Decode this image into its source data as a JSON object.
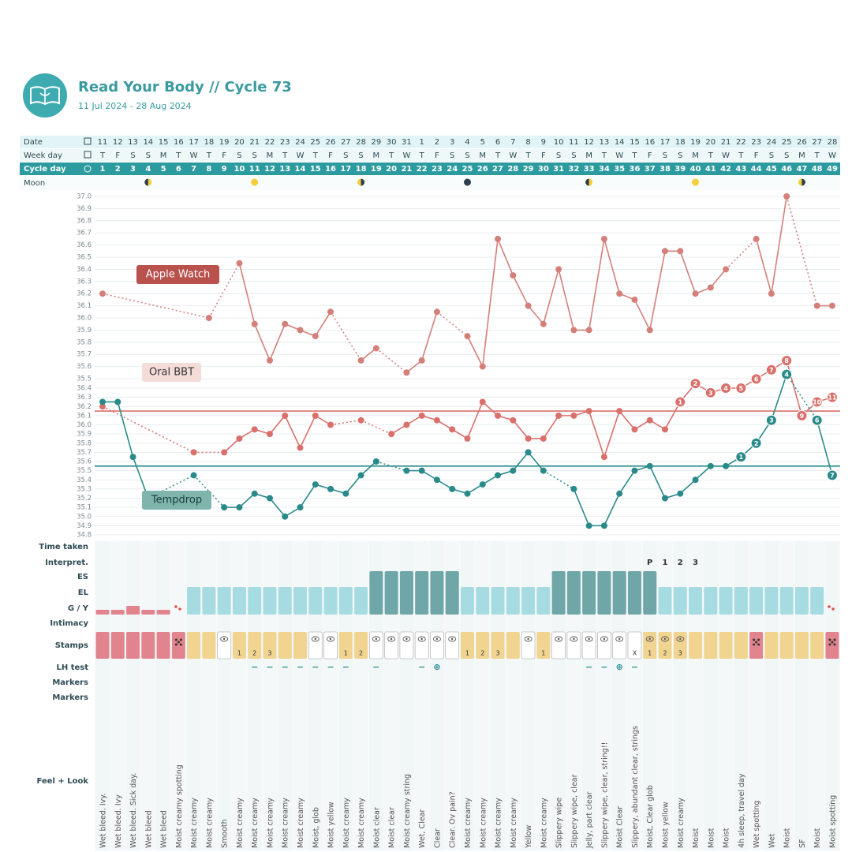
{
  "header": {
    "title": "Read Your Body // Cycle 73",
    "subtitle": "11 Jul 2024 - 28 Aug 2024"
  },
  "top_labels": [
    "Date",
    "Week day",
    "Cycle day",
    "Moon"
  ],
  "row_labels": [
    "Time taken",
    "Interpret.",
    "ES",
    "EL",
    "G / Y",
    "Intimacy",
    "Stamps",
    "LH test",
    "Markers",
    "Markers",
    "Feel + Look"
  ],
  "days": {
    "dates": [
      11,
      12,
      13,
      14,
      15,
      16,
      17,
      18,
      19,
      20,
      21,
      22,
      23,
      24,
      25,
      26,
      27,
      28,
      29,
      30,
      31,
      1,
      2,
      3,
      4,
      5,
      6,
      7,
      8,
      9,
      10,
      11,
      12,
      13,
      14,
      15,
      16,
      17,
      18,
      19,
      20,
      21,
      22,
      23,
      24,
      25,
      26,
      27,
      28
    ],
    "weekdays": [
      "T",
      "F",
      "S",
      "S",
      "M",
      "T",
      "W",
      "T",
      "F",
      "S",
      "S",
      "M",
      "T",
      "W",
      "T",
      "F",
      "S",
      "S",
      "M",
      "T",
      "W",
      "T",
      "F",
      "S",
      "S",
      "M",
      "T",
      "W",
      "T",
      "F",
      "S",
      "S",
      "M",
      "T",
      "W",
      "T",
      "F",
      "S",
      "S",
      "M",
      "T",
      "W",
      "T",
      "F",
      "S",
      "S",
      "M",
      "T",
      "W"
    ]
  },
  "chart_data": {
    "type": "line",
    "x": [
      1,
      2,
      3,
      4,
      5,
      6,
      7,
      8,
      9,
      10,
      11,
      12,
      13,
      14,
      15,
      16,
      17,
      18,
      19,
      20,
      21,
      22,
      23,
      24,
      25,
      26,
      27,
      28,
      29,
      30,
      31,
      32,
      33,
      34,
      35,
      36,
      37,
      38,
      39,
      40,
      41,
      42,
      43,
      44,
      45,
      46,
      47,
      48,
      49
    ],
    "ylim": [
      34.8,
      36.4
    ],
    "yticks": [
      34.8,
      34.9,
      {
        "value": 35,
        "label": "35.0"
      },
      35.1,
      35.2,
      35.3,
      35.4,
      35.5,
      35.6,
      35.7,
      35.8,
      35.9,
      {
        "value": 36,
        "label": "36.0"
      },
      36.1,
      36.2,
      36.3,
      36.4
    ],
    "y2lim": [
      35.5,
      37.0
    ],
    "y2ticks": [
      35.5,
      35.6,
      35.7,
      35.8,
      35.9,
      {
        "value": 36,
        "label": "36.0"
      },
      36.1,
      36.2,
      36.3,
      36.4,
      36.5,
      36.6,
      36.7,
      36.8,
      36.9,
      {
        "value": 37,
        "label": "37.0"
      }
    ],
    "grid": true,
    "series": [
      {
        "name": "Apple Watch",
        "color": "#d47f7a",
        "axis": "y2",
        "values": [
          36.2,
          null,
          null,
          null,
          null,
          null,
          null,
          36.0,
          null,
          36.45,
          35.95,
          35.65,
          35.95,
          35.9,
          35.85,
          36.05,
          null,
          35.65,
          35.75,
          null,
          35.55,
          35.65,
          36.05,
          null,
          35.85,
          35.6,
          36.65,
          36.35,
          36.1,
          35.95,
          36.4,
          35.9,
          35.9,
          36.65,
          36.2,
          36.15,
          35.9,
          36.55,
          36.55,
          36.2,
          36.25,
          36.4,
          null,
          36.65,
          36.2,
          37.0,
          null,
          36.1,
          36.1
        ]
      },
      {
        "name": "Oral BBT",
        "color": "#d9706b",
        "coverline": 36.15,
        "values": [
          36.2,
          null,
          null,
          null,
          null,
          null,
          35.7,
          null,
          35.7,
          35.85,
          35.95,
          35.9,
          36.1,
          35.75,
          36.1,
          36.0,
          null,
          36.05,
          null,
          35.9,
          36.0,
          36.1,
          36.05,
          35.95,
          35.85,
          36.25,
          36.1,
          36.05,
          35.85,
          35.85,
          36.1,
          36.1,
          36.15,
          35.65,
          36.15,
          35.95,
          36.05,
          35.95,
          36.25,
          36.45,
          36.35,
          36.4,
          36.4,
          36.5,
          36.6,
          36.7,
          36.1,
          36.25,
          36.3
        ],
        "point_labels": [
          null,
          null,
          null,
          null,
          null,
          null,
          null,
          null,
          null,
          null,
          null,
          null,
          null,
          null,
          null,
          null,
          null,
          null,
          null,
          null,
          null,
          null,
          null,
          null,
          null,
          null,
          null,
          null,
          null,
          null,
          null,
          null,
          null,
          null,
          null,
          null,
          null,
          null,
          1,
          2,
          3,
          4,
          5,
          6,
          7,
          8,
          9,
          10,
          11
        ]
      },
      {
        "name": "Tempdrop",
        "color": "#2a8a8a",
        "coverline": 35.55,
        "values": [
          36.25,
          36.25,
          35.65,
          35.2,
          null,
          null,
          35.45,
          null,
          35.1,
          35.1,
          35.25,
          35.2,
          35.0,
          35.1,
          35.35,
          35.3,
          35.25,
          35.45,
          35.6,
          null,
          35.5,
          35.5,
          35.4,
          35.3,
          35.25,
          35.35,
          35.45,
          35.5,
          35.7,
          35.5,
          null,
          35.3,
          34.9,
          34.9,
          35.25,
          35.5,
          35.55,
          35.2,
          35.25,
          35.4,
          35.55,
          35.55,
          35.65,
          35.8,
          36.05,
          36.55,
          null,
          36.05,
          35.45
        ],
        "point_labels": [
          null,
          null,
          null,
          null,
          null,
          null,
          null,
          null,
          null,
          null,
          null,
          null,
          null,
          null,
          null,
          null,
          null,
          null,
          null,
          null,
          null,
          null,
          null,
          null,
          null,
          null,
          null,
          null,
          null,
          null,
          null,
          null,
          null,
          null,
          null,
          null,
          null,
          null,
          null,
          null,
          null,
          null,
          1,
          2,
          3,
          4,
          null,
          6,
          7
        ]
      }
    ]
  },
  "interpretation": [
    null,
    null,
    null,
    null,
    null,
    null,
    null,
    null,
    null,
    null,
    null,
    null,
    null,
    null,
    null,
    null,
    null,
    null,
    null,
    null,
    null,
    null,
    null,
    null,
    null,
    null,
    null,
    null,
    null,
    null,
    null,
    null,
    null,
    null,
    null,
    null,
    "P",
    "1",
    "2",
    "3",
    null,
    null,
    null,
    null,
    null,
    null,
    null,
    null,
    null
  ],
  "cervical_fluid": {
    "colors": {
      "ES": "#6fa6a7",
      "EL": "#a6dce1"
    },
    "values": [
      null,
      null,
      null,
      null,
      null,
      null,
      "EL",
      "EL",
      "EL",
      "EL",
      "EL",
      "EL",
      "EL",
      "EL",
      "EL",
      "EL",
      "EL",
      "EL",
      "ES",
      "ES",
      "ES",
      "ES",
      "ES",
      "ES",
      "EL",
      "EL",
      "EL",
      "EL",
      "EL",
      "EL",
      "ES",
      "ES",
      "ES",
      "ES",
      "ES",
      "ES",
      "ES",
      "EL",
      "EL",
      "EL",
      "EL",
      "EL",
      "EL",
      "EL",
      "EL",
      "EL",
      "EL",
      "EL",
      null
    ]
  },
  "stamps": {
    "colors": [
      "#e2848e",
      "#e2848e",
      "#e2848e",
      "#e2848e",
      "#e2848e",
      "#e2848e",
      "#f0d490",
      "#f0d490",
      "#ffffff",
      "#f0d490",
      "#f0d490",
      "#f0d490",
      "#f0d490",
      "#f0d490",
      "#ffffff",
      "#ffffff",
      "#f0d490",
      "#f0d490",
      "#ffffff",
      "#ffffff",
      "#ffffff",
      "#ffffff",
      "#ffffff",
      "#ffffff",
      "#f0d490",
      "#f0d490",
      "#f0d490",
      "#f0d490",
      "#ffffff",
      "#f0d490",
      "#ffffff",
      "#ffffff",
      "#ffffff",
      "#ffffff",
      "#ffffff",
      "#ffffff",
      "#f0d490",
      "#f0d490",
      "#f0d490",
      "#f0d490",
      "#f0d490",
      "#f0d490",
      "#f0d490",
      "#e2848e",
      "#f0d490",
      "#f0d490",
      "#f0d490",
      "#f0d490",
      "#e2848e"
    ],
    "icons": [
      null,
      null,
      null,
      null,
      null,
      "dots",
      null,
      null,
      "eye",
      null,
      null,
      null,
      null,
      null,
      "eye",
      "eye",
      null,
      null,
      "eye",
      "eye",
      "eye",
      "eye",
      "eye",
      "eye",
      null,
      null,
      null,
      null,
      "eye",
      null,
      "eye",
      "eye",
      "eye",
      "eye",
      "eye",
      null,
      "eye",
      "eye",
      "eye",
      null,
      null,
      null,
      null,
      "dots",
      null,
      null,
      null,
      null,
      "dots"
    ],
    "labels": [
      null,
      null,
      null,
      null,
      null,
      null,
      null,
      null,
      null,
      "1",
      "2",
      "3",
      null,
      null,
      null,
      null,
      "1",
      "2",
      null,
      null,
      null,
      null,
      null,
      null,
      "1",
      "2",
      "3",
      null,
      null,
      "1",
      null,
      null,
      null,
      null,
      null,
      "X",
      "1",
      "2",
      "3",
      null,
      null,
      null,
      null,
      null,
      null,
      null,
      null,
      null,
      null
    ]
  },
  "lh_test": [
    null,
    null,
    null,
    null,
    null,
    null,
    null,
    null,
    null,
    null,
    "−",
    "−",
    "−",
    "−",
    "−",
    "−",
    "−",
    null,
    "−",
    null,
    null,
    "−",
    "⊕",
    null,
    null,
    null,
    null,
    null,
    null,
    null,
    null,
    null,
    "−",
    "−",
    "⊕",
    "−",
    null,
    null,
    null,
    null,
    null,
    null,
    null,
    null,
    null,
    null,
    null,
    null,
    null
  ],
  "feel_look": [
    "Wet bleed. Ivy.",
    "Wet bleed. Ivy",
    "Wet bleed. Sick day.",
    "Wet bleed",
    "Wet bleed",
    "Moist creamy spotting",
    "Moist creamy",
    "Moist creamy",
    "Smooth",
    "Moist creamy",
    "Moist creamy",
    "Moist creamy",
    "Moist creamy",
    "Moist creamy",
    "Moist, glob",
    "Moist yellow",
    "Moist creamy",
    "Moist creamy",
    "Moist clear",
    "Moist clear",
    "Moist creamy string",
    "Wet, Clear",
    "Clear",
    "Clear. Ov pain?",
    "Moist creamy",
    "Moist creamy",
    "Moist creamy",
    "Moist creamy",
    "Yellow",
    "Moist creamy",
    "Slippery wipe",
    "Slippery wipe, clear",
    "Jelly, part clear",
    "Slippery wipe, clear, string!!",
    "Moist Clear",
    "Slippery, abundant clear, strings",
    "Moist, Clear glob",
    "Moist yellow",
    "Moist creamy",
    "Moist",
    "Moist",
    "Moist",
    "4h sleep, travel day",
    "Wet spotting",
    "Wet",
    "Moist",
    "SF",
    "Moist",
    "Moist spotting"
  ]
}
